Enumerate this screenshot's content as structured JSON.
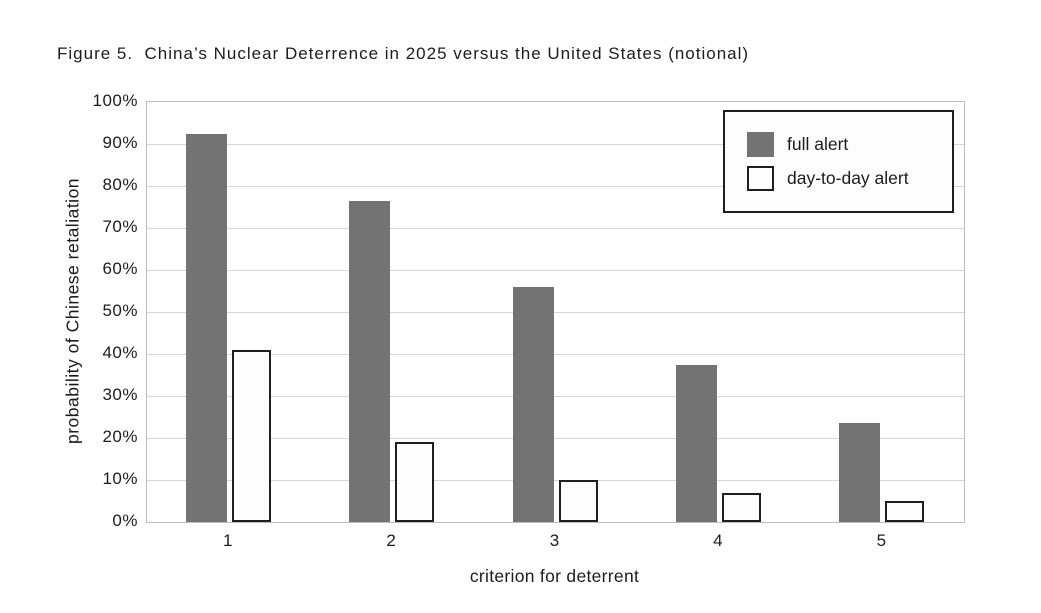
{
  "figure": {
    "title": "Figure 5.  China’s Nuclear Deterrence in 2025 versus the United States (notional)"
  },
  "chart_data": {
    "type": "bar",
    "title": "Figure 5. China’s Nuclear Deterrence in 2025 versus the United States (notional)",
    "categories": [
      "1",
      "2",
      "3",
      "4",
      "5"
    ],
    "series": [
      {
        "name": "full alert",
        "values": [
          92.5,
          76.5,
          56,
          37.5,
          23.5
        ],
        "fill": "#737373",
        "border": "none"
      },
      {
        "name": "day-to-day alert",
        "values": [
          41,
          19,
          10,
          7,
          5
        ],
        "fill": "#fdfdfd",
        "border": "#1f1f1f"
      }
    ],
    "xlabel": "criterion for deterrent",
    "ylabel": "probability of Chinese retaliation",
    "ylim": [
      0,
      100
    ],
    "yticks": [
      0,
      10,
      20,
      30,
      40,
      50,
      60,
      70,
      80,
      90,
      100
    ],
    "ytick_suffix": "%",
    "grid": true,
    "legend_position": "top-right"
  },
  "colors": {
    "background": "#ffffff",
    "text": "#1c1c1c",
    "gridline": "#d6d6d6",
    "plot_border": "#bdbdbd",
    "legend_border": "#1f1f1f",
    "legend_background": "#fdfdfd"
  }
}
